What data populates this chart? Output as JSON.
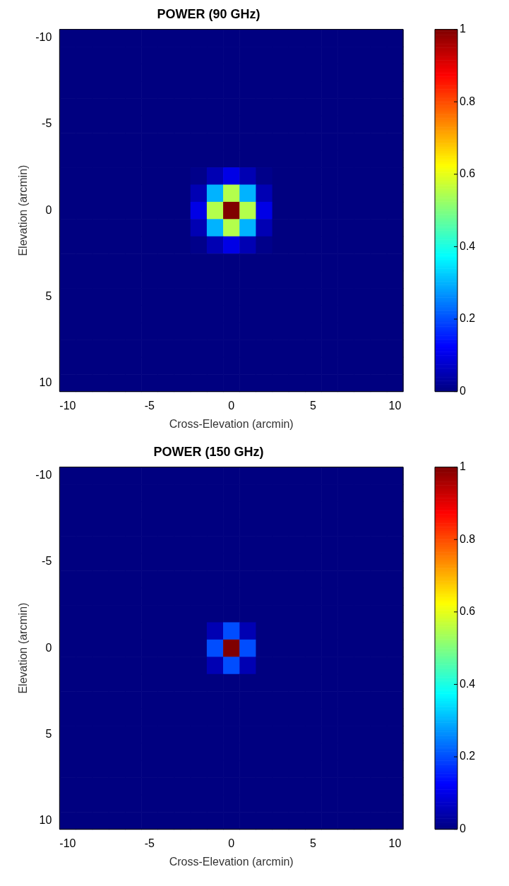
{
  "chart_data": [
    {
      "type": "heatmap",
      "title": "POWER (90 GHz)",
      "xlabel": "Cross-Elevation (arcmin)",
      "ylabel": "Elevation (arcmin)",
      "categories": [
        "-10",
        null,
        null,
        null,
        null,
        "-5",
        null,
        null,
        null,
        null,
        "0",
        null,
        null,
        null,
        null,
        "5",
        null,
        null,
        null,
        null,
        "10"
      ],
      "y_categories": [
        "-10",
        null,
        null,
        null,
        null,
        "-5",
        null,
        null,
        null,
        null,
        "0",
        null,
        null,
        null,
        null,
        "5",
        null,
        null,
        null,
        null,
        "10"
      ],
      "clim": [
        0,
        1
      ],
      "cticks": [
        0,
        0.2,
        0.4,
        0.6,
        0.8,
        1
      ],
      "cells": [
        [
          0,
          0,
          0,
          0,
          0,
          0,
          0,
          0,
          0,
          0,
          0,
          0,
          0,
          0,
          0,
          0,
          0,
          0,
          0,
          0,
          0
        ],
        [
          0,
          0,
          0,
          0,
          0,
          0,
          0,
          0,
          0,
          0,
          0,
          0,
          0,
          0,
          0,
          0,
          0,
          0,
          0,
          0,
          0
        ],
        [
          0,
          0,
          0,
          0,
          0,
          0,
          0,
          0,
          0,
          0,
          0,
          0,
          0,
          0,
          0,
          0,
          0,
          0,
          0,
          0,
          0
        ],
        [
          0,
          0,
          0,
          0,
          0,
          0,
          0,
          0,
          0,
          0,
          0,
          0,
          0,
          0,
          0,
          0,
          0,
          0,
          0,
          0,
          0
        ],
        [
          0,
          0,
          0,
          0,
          0,
          0,
          0,
          0,
          0,
          0,
          0,
          0,
          0,
          0,
          0,
          0,
          0,
          0,
          0,
          0,
          0
        ],
        [
          0,
          0,
          0,
          0,
          0,
          0,
          0,
          0,
          0,
          0,
          0,
          0,
          0,
          0,
          0,
          0,
          0,
          0,
          0,
          0,
          0
        ],
        [
          0,
          0,
          0,
          0,
          0,
          0,
          0,
          0,
          0,
          0,
          0,
          0,
          0,
          0,
          0,
          0,
          0,
          0,
          0,
          0,
          0
        ],
        [
          0,
          0,
          0,
          0,
          0,
          0,
          0,
          0,
          0,
          0,
          0,
          0,
          0,
          0,
          0,
          0,
          0,
          0,
          0,
          0,
          0
        ],
        [
          0,
          0,
          0,
          0,
          0,
          0,
          0,
          0,
          0.01,
          0.05,
          0.1,
          0.05,
          0.01,
          0,
          0,
          0,
          0,
          0,
          0,
          0,
          0
        ],
        [
          0,
          0,
          0,
          0,
          0,
          0,
          0,
          0,
          0.05,
          0.3,
          0.55,
          0.3,
          0.05,
          0,
          0,
          0,
          0,
          0,
          0,
          0,
          0
        ],
        [
          0,
          0,
          0,
          0,
          0,
          0,
          0,
          0,
          0.1,
          0.55,
          1,
          0.55,
          0.1,
          0,
          0,
          0,
          0,
          0,
          0,
          0,
          0
        ],
        [
          0,
          0,
          0,
          0,
          0,
          0,
          0,
          0,
          0.05,
          0.3,
          0.55,
          0.3,
          0.05,
          0,
          0,
          0,
          0,
          0,
          0,
          0,
          0
        ],
        [
          0,
          0,
          0,
          0,
          0,
          0,
          0,
          0,
          0.01,
          0.05,
          0.1,
          0.05,
          0.01,
          0,
          0,
          0,
          0,
          0,
          0,
          0,
          0
        ],
        [
          0,
          0,
          0,
          0,
          0,
          0,
          0,
          0,
          0,
          0,
          0,
          0,
          0,
          0,
          0,
          0,
          0,
          0,
          0,
          0,
          0
        ],
        [
          0,
          0,
          0,
          0,
          0,
          0,
          0,
          0,
          0,
          0,
          0,
          0,
          0,
          0,
          0,
          0,
          0,
          0,
          0,
          0,
          0
        ],
        [
          0,
          0,
          0,
          0,
          0,
          0,
          0,
          0,
          0,
          0,
          0,
          0,
          0,
          0,
          0,
          0,
          0,
          0,
          0,
          0,
          0
        ],
        [
          0,
          0,
          0,
          0,
          0,
          0,
          0,
          0,
          0,
          0,
          0,
          0,
          0,
          0,
          0,
          0,
          0,
          0,
          0,
          0,
          0
        ],
        [
          0,
          0,
          0,
          0,
          0,
          0,
          0,
          0,
          0,
          0,
          0,
          0,
          0,
          0,
          0,
          0,
          0,
          0,
          0,
          0,
          0
        ],
        [
          0,
          0,
          0,
          0,
          0,
          0,
          0,
          0,
          0,
          0,
          0,
          0,
          0,
          0,
          0,
          0,
          0,
          0,
          0,
          0,
          0
        ],
        [
          0,
          0,
          0,
          0,
          0,
          0,
          0,
          0,
          0,
          0,
          0,
          0,
          0,
          0,
          0,
          0,
          0,
          0,
          0,
          0,
          0
        ],
        [
          0,
          0,
          0,
          0,
          0,
          0,
          0,
          0,
          0,
          0,
          0,
          0,
          0,
          0,
          0,
          0,
          0,
          0,
          0,
          0,
          0
        ]
      ]
    },
    {
      "type": "heatmap",
      "title": "POWER (150 GHz)",
      "xlabel": "Cross-Elevation (arcmin)",
      "ylabel": "Elevation (arcmin)",
      "categories": [
        "-10",
        null,
        null,
        null,
        null,
        "-5",
        null,
        null,
        null,
        null,
        "0",
        null,
        null,
        null,
        null,
        "5",
        null,
        null,
        null,
        null,
        "10"
      ],
      "y_categories": [
        "-10",
        null,
        null,
        null,
        null,
        "-5",
        null,
        null,
        null,
        null,
        "0",
        null,
        null,
        null,
        null,
        "5",
        null,
        null,
        null,
        null,
        "10"
      ],
      "clim": [
        0,
        1
      ],
      "cticks": [
        0,
        0.2,
        0.4,
        0.6,
        0.8,
        1
      ],
      "cells": [
        [
          0,
          0,
          0,
          0,
          0,
          0,
          0,
          0,
          0,
          0,
          0,
          0,
          0,
          0,
          0,
          0,
          0,
          0,
          0,
          0,
          0
        ],
        [
          0,
          0,
          0,
          0,
          0,
          0,
          0,
          0,
          0,
          0,
          0,
          0,
          0,
          0,
          0,
          0,
          0,
          0,
          0,
          0,
          0
        ],
        [
          0,
          0,
          0,
          0,
          0,
          0,
          0,
          0,
          0,
          0,
          0,
          0,
          0,
          0,
          0,
          0,
          0,
          0,
          0,
          0,
          0
        ],
        [
          0,
          0,
          0,
          0,
          0,
          0,
          0,
          0,
          0,
          0,
          0,
          0,
          0,
          0,
          0,
          0,
          0,
          0,
          0,
          0,
          0
        ],
        [
          0,
          0,
          0,
          0,
          0,
          0,
          0,
          0,
          0,
          0,
          0,
          0,
          0,
          0,
          0,
          0,
          0,
          0,
          0,
          0,
          0
        ],
        [
          0,
          0,
          0,
          0,
          0,
          0,
          0,
          0,
          0,
          0,
          0,
          0,
          0,
          0,
          0,
          0,
          0,
          0,
          0,
          0,
          0
        ],
        [
          0,
          0,
          0,
          0,
          0,
          0,
          0,
          0,
          0,
          0,
          0,
          0,
          0,
          0,
          0,
          0,
          0,
          0,
          0,
          0,
          0
        ],
        [
          0,
          0,
          0,
          0,
          0,
          0,
          0,
          0,
          0,
          0,
          0,
          0,
          0,
          0,
          0,
          0,
          0,
          0,
          0,
          0,
          0
        ],
        [
          0,
          0,
          0,
          0,
          0,
          0,
          0,
          0,
          0,
          0,
          0,
          0,
          0,
          0,
          0,
          0,
          0,
          0,
          0,
          0,
          0
        ],
        [
          0,
          0,
          0,
          0,
          0,
          0,
          0,
          0,
          0,
          0.05,
          0.2,
          0.05,
          0,
          0,
          0,
          0,
          0,
          0,
          0,
          0,
          0
        ],
        [
          0,
          0,
          0,
          0,
          0,
          0,
          0,
          0,
          0,
          0.2,
          1,
          0.2,
          0,
          0,
          0,
          0,
          0,
          0,
          0,
          0,
          0
        ],
        [
          0,
          0,
          0,
          0,
          0,
          0,
          0,
          0,
          0,
          0.05,
          0.2,
          0.05,
          0,
          0,
          0,
          0,
          0,
          0,
          0,
          0,
          0
        ],
        [
          0,
          0,
          0,
          0,
          0,
          0,
          0,
          0,
          0,
          0,
          0,
          0,
          0,
          0,
          0,
          0,
          0,
          0,
          0,
          0,
          0
        ],
        [
          0,
          0,
          0,
          0,
          0,
          0,
          0,
          0,
          0,
          0,
          0,
          0,
          0,
          0,
          0,
          0,
          0,
          0,
          0,
          0,
          0
        ],
        [
          0,
          0,
          0,
          0,
          0,
          0,
          0,
          0,
          0,
          0,
          0,
          0,
          0,
          0,
          0,
          0,
          0,
          0,
          0,
          0,
          0
        ],
        [
          0,
          0,
          0,
          0,
          0,
          0,
          0,
          0,
          0,
          0,
          0,
          0,
          0,
          0,
          0,
          0,
          0,
          0,
          0,
          0,
          0
        ],
        [
          0,
          0,
          0,
          0,
          0,
          0,
          0,
          0,
          0,
          0,
          0,
          0,
          0,
          0,
          0,
          0,
          0,
          0,
          0,
          0,
          0
        ],
        [
          0,
          0,
          0,
          0,
          0,
          0,
          0,
          0,
          0,
          0,
          0,
          0,
          0,
          0,
          0,
          0,
          0,
          0,
          0,
          0,
          0
        ],
        [
          0,
          0,
          0,
          0,
          0,
          0,
          0,
          0,
          0,
          0,
          0,
          0,
          0,
          0,
          0,
          0,
          0,
          0,
          0,
          0,
          0
        ],
        [
          0,
          0,
          0,
          0,
          0,
          0,
          0,
          0,
          0,
          0,
          0,
          0,
          0,
          0,
          0,
          0,
          0,
          0,
          0,
          0,
          0
        ],
        [
          0,
          0,
          0,
          0,
          0,
          0,
          0,
          0,
          0,
          0,
          0,
          0,
          0,
          0,
          0,
          0,
          0,
          0,
          0,
          0,
          0
        ]
      ]
    }
  ]
}
